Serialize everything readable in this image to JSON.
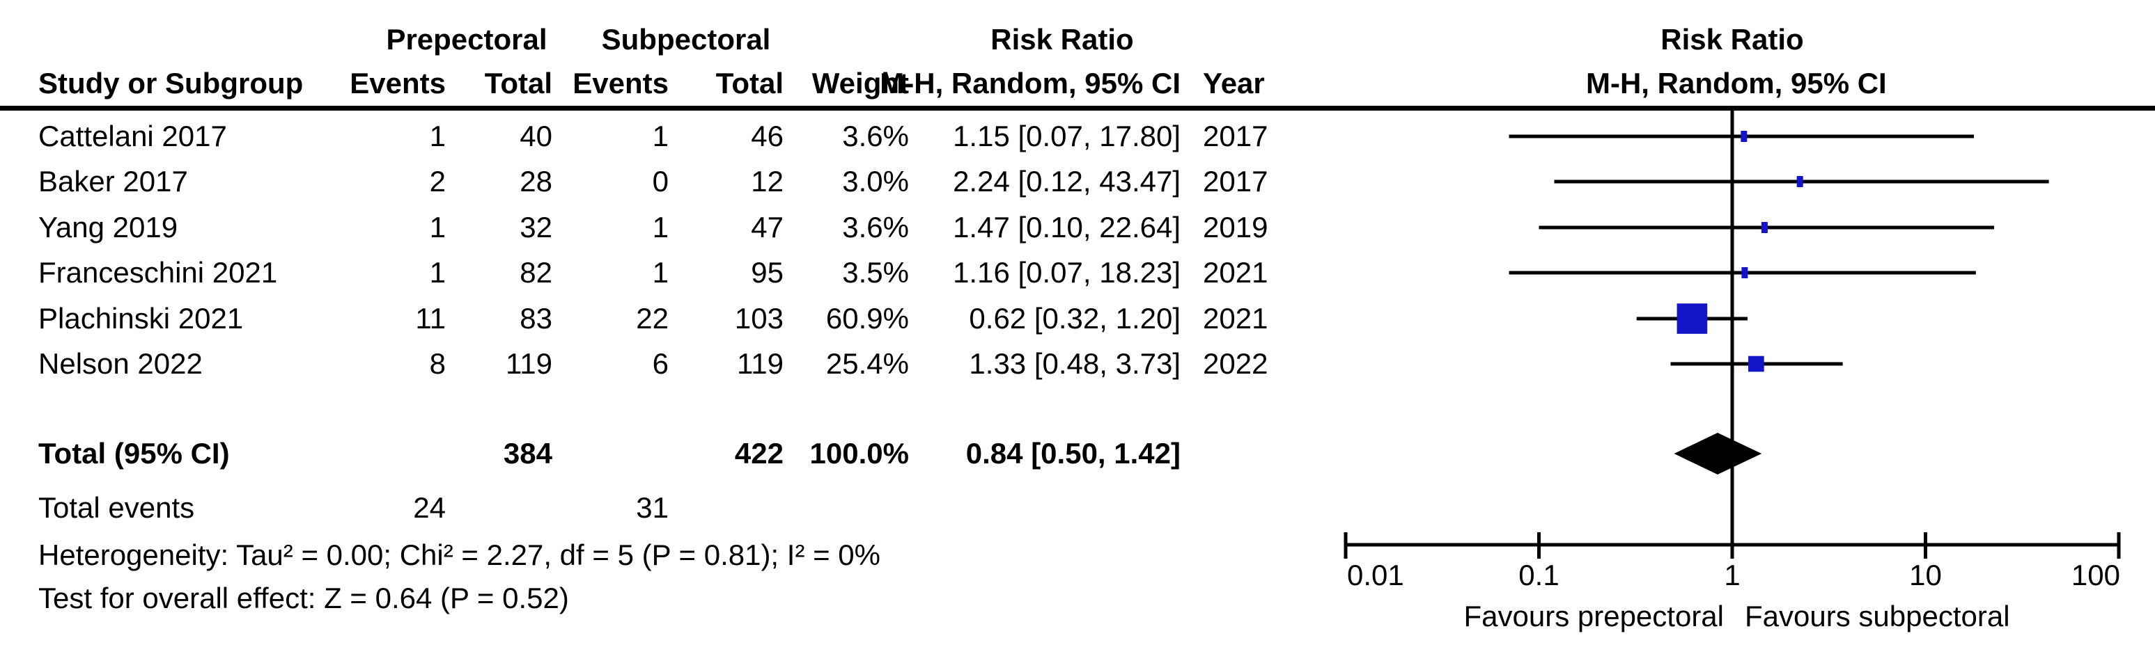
{
  "title_headers": {
    "group_prepectoral": "Prepectoral",
    "group_subpectoral": "Subpectoral",
    "risk_ratio_col": "Risk Ratio",
    "risk_ratio_plot": "Risk Ratio"
  },
  "col_headers": {
    "study": "Study or Subgroup",
    "events_pre": "Events",
    "total_pre": "Total",
    "events_sub": "Events",
    "total_sub": "Total",
    "weight": "Weight",
    "mh_ci": "M-H, Random, 95% CI",
    "year": "Year",
    "mh_ci_plot": "M-H, Random, 95% CI"
  },
  "chart_data": {
    "type": "forest",
    "x_scale": "log10",
    "xlim": [
      0.01,
      100
    ],
    "x_ticks": [
      0.01,
      0.1,
      1,
      10,
      100
    ],
    "x_tick_labels": [
      "0.01",
      "0.1",
      "1",
      "10",
      "100"
    ],
    "favours_left": "Favours prepectoral",
    "favours_right": "Favours subpectoral",
    "marker_color": "#1414c8",
    "line_color": "#000000",
    "studies": [
      {
        "study": "Cattelani 2017",
        "events_pre": "1",
        "total_pre": "40",
        "events_sub": "1",
        "total_sub": "46",
        "weight": "3.6%",
        "weight_pct": 3.6,
        "rr": 1.15,
        "ci_low": 0.07,
        "ci_high": 17.8,
        "rr_text": "1.15 [0.07, 17.80]",
        "year": "2017"
      },
      {
        "study": "Baker 2017",
        "events_pre": "2",
        "total_pre": "28",
        "events_sub": "0",
        "total_sub": "12",
        "weight": "3.0%",
        "weight_pct": 3.0,
        "rr": 2.24,
        "ci_low": 0.12,
        "ci_high": 43.47,
        "rr_text": "2.24 [0.12, 43.47]",
        "year": "2017"
      },
      {
        "study": "Yang 2019",
        "events_pre": "1",
        "total_pre": "32",
        "events_sub": "1",
        "total_sub": "47",
        "weight": "3.6%",
        "weight_pct": 3.6,
        "rr": 1.47,
        "ci_low": 0.1,
        "ci_high": 22.64,
        "rr_text": "1.47 [0.10, 22.64]",
        "year": "2019"
      },
      {
        "study": "Franceschini 2021",
        "events_pre": "1",
        "total_pre": "82",
        "events_sub": "1",
        "total_sub": "95",
        "weight": "3.5%",
        "weight_pct": 3.5,
        "rr": 1.16,
        "ci_low": 0.07,
        "ci_high": 18.23,
        "rr_text": "1.16 [0.07, 18.23]",
        "year": "2021"
      },
      {
        "study": "Plachinski 2021",
        "events_pre": "11",
        "total_pre": "83",
        "events_sub": "22",
        "total_sub": "103",
        "weight": "60.9%",
        "weight_pct": 60.9,
        "rr": 0.62,
        "ci_low": 0.32,
        "ci_high": 1.2,
        "rr_text": "0.62 [0.32, 1.20]",
        "year": "2021"
      },
      {
        "study": "Nelson 2022",
        "events_pre": "8",
        "total_pre": "119",
        "events_sub": "6",
        "total_sub": "119",
        "weight": "25.4%",
        "weight_pct": 25.4,
        "rr": 1.33,
        "ci_low": 0.48,
        "ci_high": 3.73,
        "rr_text": "1.33 [0.48, 3.73]",
        "year": "2022"
      }
    ],
    "total": {
      "label": "Total (95% CI)",
      "total_pre": "384",
      "total_sub": "422",
      "weight": "100.0%",
      "rr": 0.84,
      "ci_low": 0.5,
      "ci_high": 1.42,
      "rr_text": "0.84 [0.50, 1.42]"
    }
  },
  "total_events": {
    "label": "Total events",
    "pre": "24",
    "sub": "31"
  },
  "footnotes": {
    "heterogeneity": "Heterogeneity: Tau² = 0.00; Chi² = 2.27, df = 5 (P = 0.81); I² = 0%",
    "overall_effect": "Test for overall effect: Z = 0.64 (P = 0.52)"
  }
}
